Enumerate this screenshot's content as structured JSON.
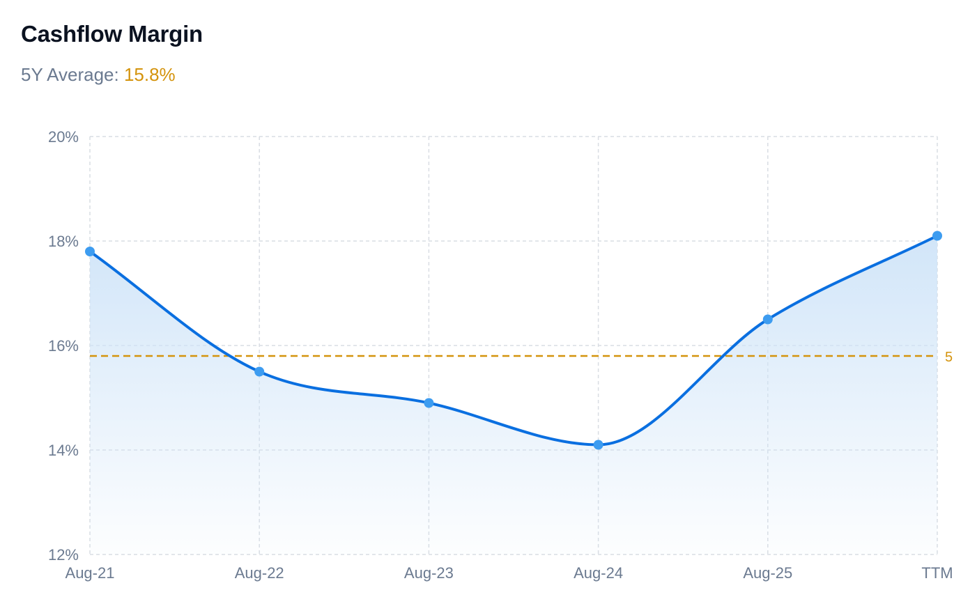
{
  "header": {
    "title": "Cashflow Margin",
    "average_label": "5Y Average:",
    "average_value": "15.8%"
  },
  "colors": {
    "line": "#0a6fe0",
    "point": "#3d9cf0",
    "area_top": "#cfe4f8",
    "average_line": "#d4930c",
    "grid": "#d9dde3",
    "axis_text": "#6b7a90"
  },
  "chart_data": {
    "type": "area",
    "title": "Cashflow Margin",
    "categories": [
      "Aug-21",
      "Aug-22",
      "Aug-23",
      "Aug-24",
      "Aug-25",
      "TTM"
    ],
    "series": [
      {
        "values": [
          17.8,
          15.5,
          14.9,
          14.1,
          16.5,
          18.1
        ]
      }
    ],
    "y_ticks": [
      "20%",
      "18%",
      "16%",
      "14%",
      "12%"
    ],
    "ylim": [
      12,
      20
    ],
    "grid": true,
    "reference_lines": [
      {
        "label": "5",
        "value": 15.8
      }
    ]
  }
}
